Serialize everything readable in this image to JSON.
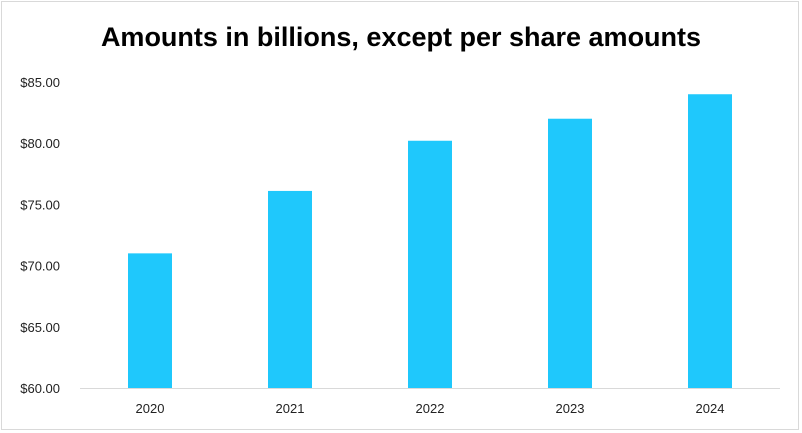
{
  "chart_data": {
    "type": "bar",
    "title": "Amounts in billions, except per share amounts",
    "xlabel": "",
    "ylabel": "",
    "categories": [
      "2020",
      "2021",
      "2022",
      "2023",
      "2024"
    ],
    "values": [
      71.0,
      76.1,
      80.2,
      82.0,
      84.0
    ],
    "ylim": [
      60,
      85
    ],
    "y_ticks": [
      60,
      65,
      70,
      75,
      80,
      85
    ],
    "y_tick_labels": [
      "$60.00",
      "$65.00",
      "$70.00",
      "$75.00",
      "$80.00",
      "$85.00"
    ],
    "grid": false,
    "legend": "none",
    "bar_color": "#1fc8fc",
    "axis_color": "#d9d9d9"
  }
}
